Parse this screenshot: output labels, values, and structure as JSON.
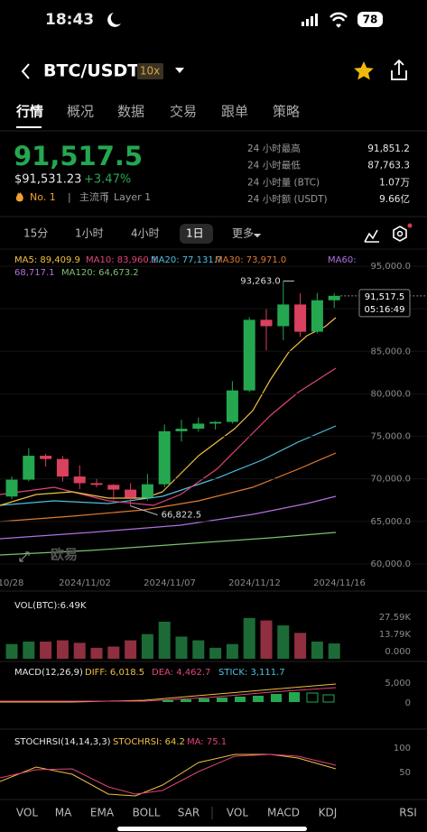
{
  "status_bar": {
    "time": "18:43",
    "battery": "78"
  },
  "header": {
    "pair": "BTC/USDT",
    "leverage": "10x"
  },
  "tabs": [
    "行情",
    "概况",
    "数据",
    "交易",
    "跟单",
    "策略"
  ],
  "price": {
    "last": "91,517.5",
    "fiat": "$91,531.23",
    "change": "+3.47%",
    "tags": [
      "No. 1",
      "主流币",
      "Layer 1"
    ]
  },
  "stats": [
    [
      "24 小时最高",
      "91,851.2"
    ],
    [
      "24 小时最低",
      "87,763.3"
    ],
    [
      "24 小时量 (BTC)",
      "1.07万"
    ],
    [
      "24 小时额 (USDT)",
      "9.66亿"
    ]
  ],
  "intervals": [
    "15分",
    "1小时",
    "4小时",
    "1日",
    "更多"
  ],
  "ma_legend": [
    {
      "text": "MA5: 89,409.9",
      "color": "#f0c040"
    },
    {
      "text": "MA10: 83,960.1",
      "color": "#e0447a"
    },
    {
      "text": "MA20: 77,131.7",
      "color": "#4fc0e0"
    },
    {
      "text": "MA30: 73,971.0",
      "color": "#e07b30"
    },
    {
      "text": "MA60:",
      "color": "#b070e0"
    },
    {
      "text": "68,717.1",
      "color": "#b070e0"
    },
    {
      "text": "MA120: 64,673.2",
      "color": "#7cc070"
    }
  ],
  "kline": {
    "type": "candlestick",
    "ylim": [
      60000,
      95000
    ],
    "yticks": [
      {
        "value": 95000,
        "label": "95,000.0"
      },
      {
        "value": 90000,
        "label": "90,000.0"
      },
      {
        "value": 85000,
        "label": "85,000.0"
      },
      {
        "value": 80000,
        "label": "80,000.0"
      },
      {
        "value": 75000,
        "label": "75,000.0"
      },
      {
        "value": 70000,
        "label": "70,000.0"
      },
      {
        "value": 65000,
        "label": "65,000.0"
      },
      {
        "value": 60000,
        "label": "60,000.0"
      }
    ],
    "x_labels": [
      "10/28",
      "2024/11/02",
      "2024/11/07",
      "2024/11/12",
      "2024/11/16"
    ],
    "up_color": "#25a750",
    "down_color": "#d9415e",
    "candles": [
      {
        "o": 67930,
        "h": 70270,
        "l": 67630,
        "c": 69910
      },
      {
        "o": 69910,
        "h": 73620,
        "l": 69730,
        "c": 72720
      },
      {
        "o": 72720,
        "h": 72960,
        "l": 71440,
        "c": 72340
      },
      {
        "o": 72340,
        "h": 72700,
        "l": 69700,
        "c": 70280
      },
      {
        "o": 70280,
        "h": 71600,
        "l": 68800,
        "c": 69500
      },
      {
        "o": 69500,
        "h": 70000,
        "l": 69000,
        "c": 69300
      },
      {
        "o": 69300,
        "h": 69400,
        "l": 67500,
        "c": 68740
      },
      {
        "o": 68740,
        "h": 69500,
        "l": 66822.5,
        "c": 67800
      },
      {
        "o": 67800,
        "h": 70580,
        "l": 67450,
        "c": 69370
      },
      {
        "o": 69370,
        "h": 76400,
        "l": 69000,
        "c": 75600
      },
      {
        "o": 75600,
        "h": 76950,
        "l": 74400,
        "c": 75900
      },
      {
        "o": 75900,
        "h": 77200,
        "l": 75560,
        "c": 76500
      },
      {
        "o": 76500,
        "h": 76800,
        "l": 75800,
        "c": 76700
      },
      {
        "o": 76700,
        "h": 81500,
        "l": 76500,
        "c": 80400
      },
      {
        "o": 80400,
        "h": 89000,
        "l": 80200,
        "c": 88700
      },
      {
        "o": 88700,
        "h": 89950,
        "l": 85100,
        "c": 87950
      },
      {
        "o": 87950,
        "h": 93263,
        "l": 86300,
        "c": 90500
      },
      {
        "o": 90500,
        "h": 91800,
        "l": 86700,
        "c": 87300
      },
      {
        "o": 87300,
        "h": 91850,
        "l": 87100,
        "c": 91000
      },
      {
        "o": 91000,
        "h": 91851,
        "l": 90100,
        "c": 91517.5
      }
    ],
    "high_label": "93,263.0",
    "low_label": "66,822.5",
    "current_label": "91,517.5",
    "countdown": "05:16:49",
    "watermark": "欧易"
  },
  "volume": {
    "label": "VOL(BTC):6.49K",
    "ylim": [
      0,
      30500
    ],
    "yticks": [
      {
        "value": 27590,
        "label": "27.59K"
      },
      {
        "value": 13790,
        "label": "13.79K"
      },
      {
        "value": 0,
        "label": "0.000"
      }
    ],
    "values": [
      6000,
      8000,
      8000,
      9000,
      7000,
      3000,
      4000,
      9000,
      14000,
      24000,
      12000,
      9000,
      3000,
      6000,
      27000,
      25000,
      21000,
      15000,
      8000,
      6490
    ]
  },
  "macd": {
    "label": "MACD(12,26,9)",
    "diff": "DIFF: 6,018.5",
    "dea": "DEA: 4,462.7",
    "stick": "STICK: 3,111.7",
    "yticks": [
      {
        "value": 5000,
        "label": "5,000"
      },
      0
    ]
  },
  "stochrsi": {
    "label": "STOCHRSI(14,14,3,3)",
    "value": "STOCHRSI: 64.2",
    "ma": "MA: 75.1",
    "yticks": [
      100,
      50
    ]
  },
  "bottom_tabs": [
    "VOL",
    "MA",
    "EMA",
    "BOLL",
    "SAR",
    "VOL",
    "MACD",
    "KDJ",
    "RSI"
  ]
}
